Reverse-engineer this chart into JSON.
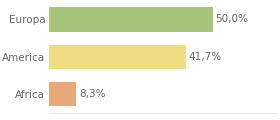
{
  "categories": [
    "Africa",
    "America",
    "Europa"
  ],
  "values": [
    8.3,
    41.7,
    50.0
  ],
  "labels": [
    "8,3%",
    "41,7%",
    "50,0%"
  ],
  "bar_colors": [
    "#e8a87c",
    "#f0dc82",
    "#a8c47a"
  ],
  "background_color": "#ffffff",
  "grid_color": "#e8e8e8",
  "text_color": "#666666",
  "xlim": [
    0,
    70
  ],
  "bar_height": 0.65,
  "label_fontsize": 7.5,
  "tick_fontsize": 7.5,
  "figsize": [
    2.8,
    1.2
  ],
  "dpi": 100
}
